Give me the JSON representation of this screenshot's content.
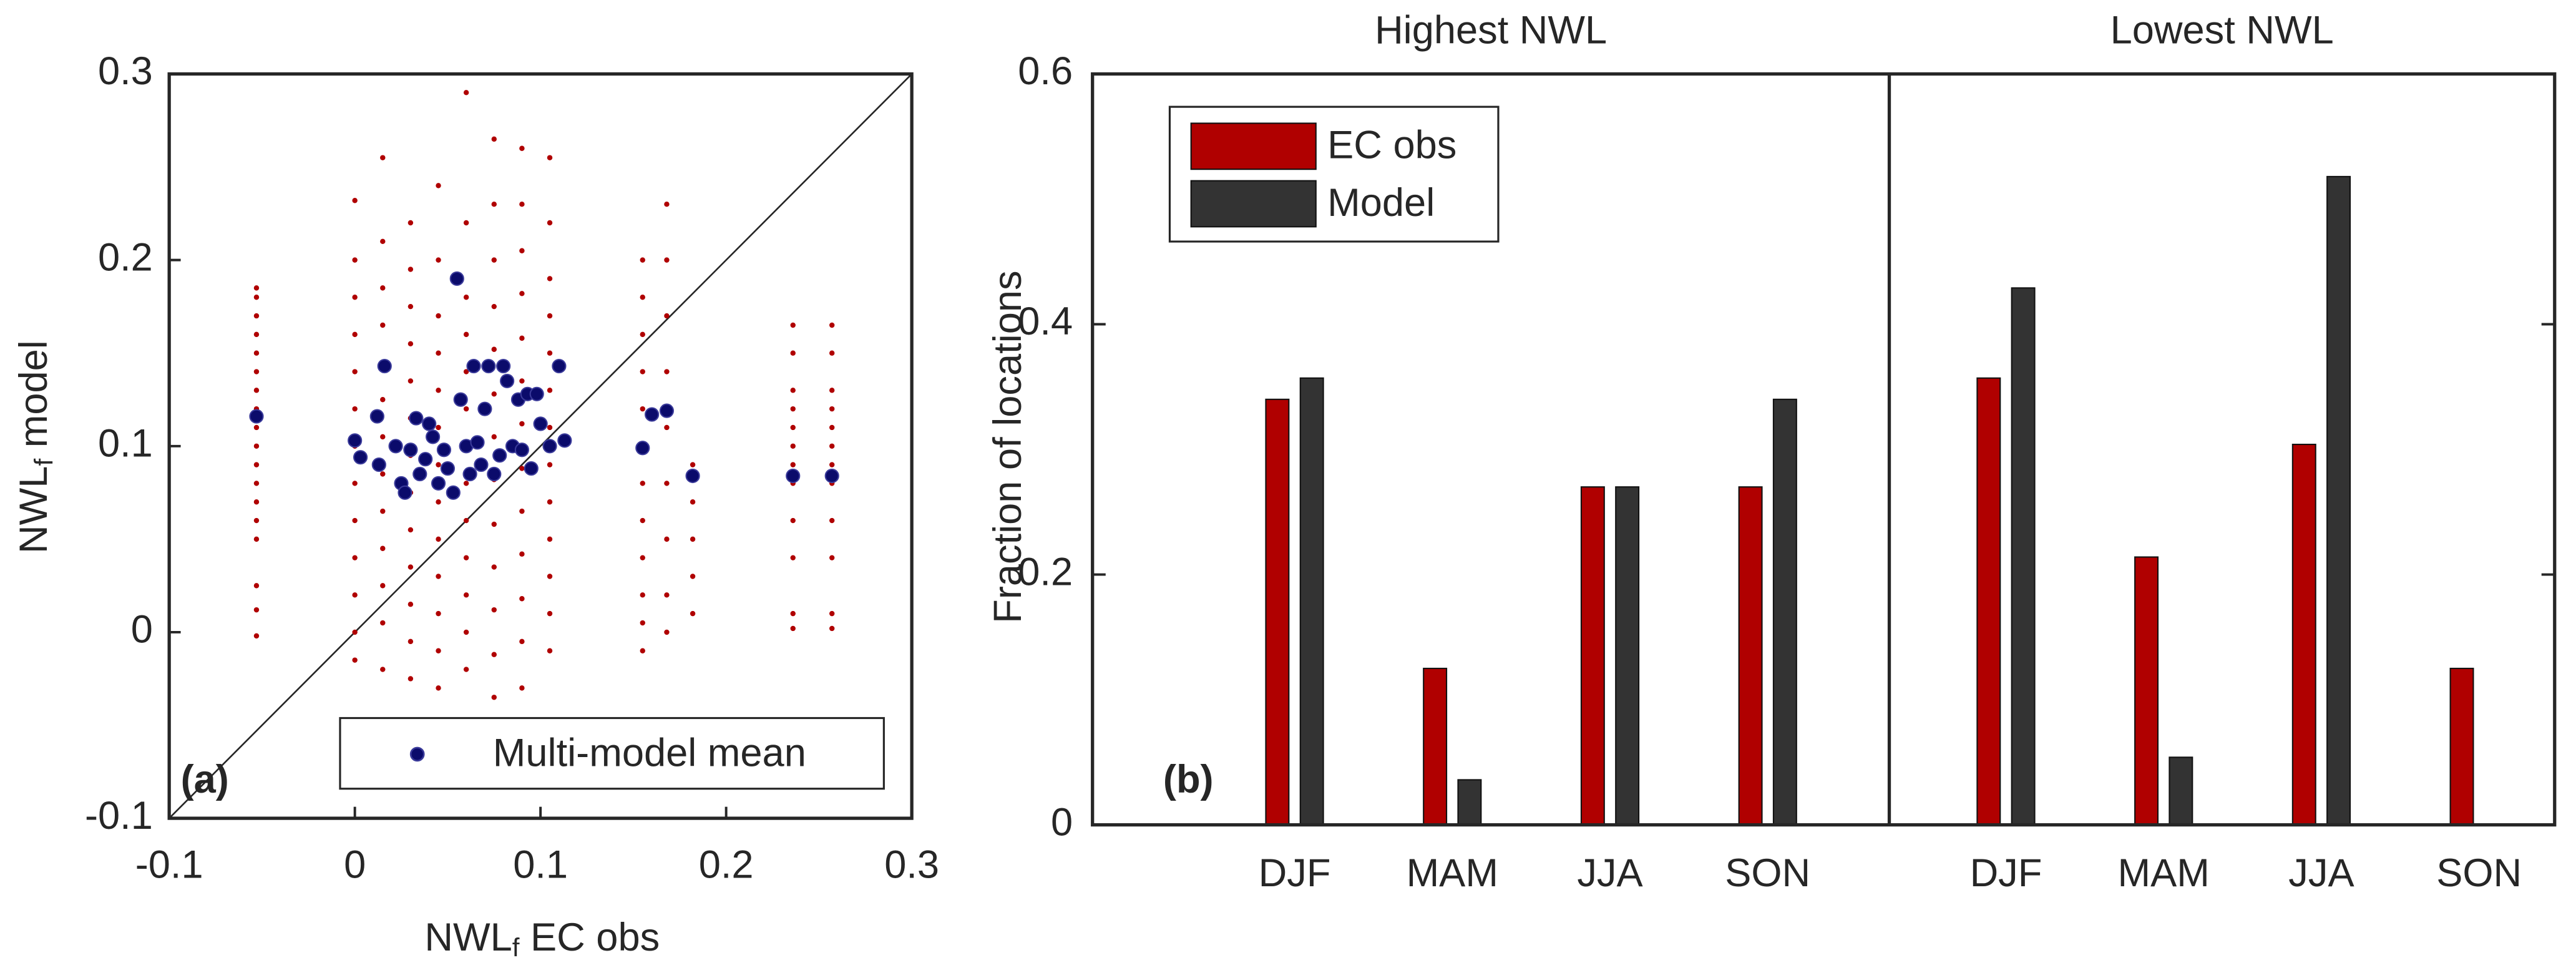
{
  "chart_data": [
    {
      "type": "scatter",
      "panel_label": "(a)",
      "xlabel": [
        "NWL",
        "f",
        " EC obs"
      ],
      "ylabel": [
        "NWL",
        "f",
        " model"
      ],
      "xlim": [
        -0.1,
        0.3
      ],
      "ylim": [
        -0.1,
        0.3
      ],
      "xticks": [
        -0.1,
        0,
        0.1,
        0.2,
        0.3
      ],
      "yticks": [
        -0.1,
        0,
        0.1,
        0.2,
        0.3
      ],
      "legend": "lower right",
      "series": [
        {
          "color": "#b00000",
          "x": [
            -0.053,
            -0.053,
            -0.053,
            -0.053,
            -0.053,
            -0.053,
            -0.053,
            -0.053,
            -0.053,
            -0.053,
            -0.053,
            -0.053,
            -0.053,
            -0.053,
            -0.053,
            -0.053,
            -0.053,
            -0.053,
            0,
            0,
            0,
            0,
            0,
            0,
            0,
            0,
            0,
            0,
            0,
            0,
            0,
            0.015,
            0.015,
            0.015,
            0.015,
            0.015,
            0.015,
            0.015,
            0.015,
            0.015,
            0.015,
            0.015,
            0.015,
            0.015,
            0.03,
            0.03,
            0.03,
            0.03,
            0.03,
            0.03,
            0.03,
            0.03,
            0.03,
            0.03,
            0.03,
            0.03,
            0.03,
            0.045,
            0.045,
            0.045,
            0.045,
            0.045,
            0.045,
            0.045,
            0.045,
            0.045,
            0.045,
            0.045,
            0.045,
            0.045,
            0.06,
            0.06,
            0.06,
            0.06,
            0.06,
            0.06,
            0.06,
            0.06,
            0.06,
            0.06,
            0.06,
            0.06,
            0.06,
            0.075,
            0.075,
            0.075,
            0.075,
            0.075,
            0.075,
            0.075,
            0.075,
            0.075,
            0.075,
            0.075,
            0.075,
            0.075,
            0.09,
            0.09,
            0.09,
            0.09,
            0.09,
            0.09,
            0.09,
            0.09,
            0.09,
            0.09,
            0.09,
            0.09,
            0.09,
            0.105,
            0.105,
            0.105,
            0.105,
            0.105,
            0.105,
            0.105,
            0.105,
            0.105,
            0.105,
            0.105,
            0.105,
            0.105,
            0.155,
            0.155,
            0.155,
            0.155,
            0.155,
            0.155,
            0.155,
            0.155,
            0.155,
            0.155,
            0.155,
            0.155,
            0.168,
            0.168,
            0.168,
            0.168,
            0.168,
            0.168,
            0.168,
            0.168,
            0.168,
            0.182,
            0.182,
            0.182,
            0.182,
            0.182,
            0.236,
            0.236,
            0.236,
            0.236,
            0.236,
            0.236,
            0.236,
            0.236,
            0.236,
            0.236,
            0.236,
            0.236,
            0.257,
            0.257,
            0.257,
            0.257,
            0.257,
            0.257,
            0.257,
            0.257,
            0.257,
            0.257,
            0.257,
            0.257
          ],
          "values": [
            0.185,
            0.18,
            0.17,
            0.16,
            0.15,
            0.14,
            0.13,
            0.12,
            0.11,
            0.1,
            0.09,
            0.08,
            0.07,
            0.06,
            0.05,
            0.025,
            0.012,
            -0.002,
            -0.015,
            0.0,
            0.02,
            0.04,
            0.06,
            0.08,
            0.1,
            0.12,
            0.14,
            0.16,
            0.18,
            0.2,
            0.232,
            -0.02,
            0.005,
            0.025,
            0.045,
            0.065,
            0.085,
            0.105,
            0.125,
            0.145,
            0.165,
            0.185,
            0.21,
            0.255,
            -0.025,
            -0.005,
            0.015,
            0.035,
            0.055,
            0.075,
            0.095,
            0.115,
            0.135,
            0.155,
            0.175,
            0.195,
            0.22,
            -0.03,
            -0.01,
            0.01,
            0.03,
            0.05,
            0.07,
            0.09,
            0.11,
            0.13,
            0.15,
            0.17,
            0.2,
            0.24,
            -0.02,
            0.0,
            0.02,
            0.04,
            0.06,
            0.08,
            0.1,
            0.12,
            0.14,
            0.16,
            0.18,
            0.22,
            0.29,
            -0.035,
            -0.012,
            0.012,
            0.035,
            0.058,
            0.082,
            0.105,
            0.128,
            0.152,
            0.175,
            0.2,
            0.23,
            0.265,
            -0.03,
            -0.005,
            0.018,
            0.042,
            0.065,
            0.088,
            0.112,
            0.135,
            0.158,
            0.182,
            0.205,
            0.23,
            0.26,
            -0.01,
            0.01,
            0.03,
            0.05,
            0.07,
            0.09,
            0.11,
            0.13,
            0.15,
            0.17,
            0.19,
            0.22,
            0.255,
            0.2,
            0.18,
            0.16,
            0.14,
            0.12,
            0.1,
            0.08,
            0.06,
            0.04,
            0.02,
            0.005,
            -0.01,
            0.23,
            0.2,
            0.17,
            0.14,
            0.11,
            0.08,
            0.05,
            0.02,
            0.0,
            0.09,
            0.07,
            0.05,
            0.03,
            0.01,
            0.165,
            0.15,
            0.13,
            0.12,
            0.11,
            0.1,
            0.09,
            0.08,
            0.06,
            0.04,
            0.01,
            0.002,
            0.165,
            0.15,
            0.13,
            0.12,
            0.11,
            0.1,
            0.09,
            0.08,
            0.06,
            0.04,
            0.01,
            0.002
          ]
        },
        {
          "name": "Multi-model mean",
          "color": "#0b0b6b",
          "x": [
            -0.053,
            0,
            0.003,
            0.012,
            0.013,
            0.016,
            0.022,
            0.025,
            0.027,
            0.03,
            0.033,
            0.035,
            0.038,
            0.04,
            0.042,
            0.045,
            0.048,
            0.05,
            0.053,
            0.055,
            0.057,
            0.06,
            0.062,
            0.064,
            0.066,
            0.068,
            0.07,
            0.072,
            0.075,
            0.078,
            0.08,
            0.082,
            0.085,
            0.088,
            0.09,
            0.093,
            0.095,
            0.098,
            0.1,
            0.105,
            0.11,
            0.113,
            0.155,
            0.16,
            0.168,
            0.182,
            0.236,
            0.257
          ],
          "values": [
            0.116,
            0.103,
            0.094,
            0.116,
            0.09,
            0.143,
            0.1,
            0.08,
            0.075,
            0.098,
            0.115,
            0.085,
            0.093,
            0.112,
            0.105,
            0.08,
            0.098,
            0.088,
            0.075,
            0.19,
            0.125,
            0.1,
            0.085,
            0.143,
            0.102,
            0.09,
            0.12,
            0.143,
            0.085,
            0.095,
            0.143,
            0.135,
            0.1,
            0.125,
            0.098,
            0.128,
            0.088,
            0.128,
            0.112,
            0.1,
            0.143,
            0.103,
            0.099,
            0.117,
            0.119,
            0.084,
            0.084,
            0.084
          ]
        }
      ]
    },
    {
      "type": "bar",
      "panel_label": "(b)",
      "ylabel": "Fraction of locations",
      "categories": [
        "DJF",
        "MAM",
        "JJA",
        "SON"
      ],
      "ylim": [
        0,
        0.6
      ],
      "yticks": [
        0,
        0.2,
        0.4,
        0.6
      ],
      "legend": "upper left",
      "panels": [
        {
          "title": "Highest NWL",
          "series": [
            {
              "name": "EC obs",
              "color": "#b00000",
              "values": [
                0.34,
                0.125,
                0.27,
                0.27
              ]
            },
            {
              "name": "Model",
              "color": "#333333",
              "values": [
                0.357,
                0.036,
                0.27,
                0.34
              ]
            }
          ]
        },
        {
          "title": "Lowest NWL",
          "series": [
            {
              "color": "#b00000",
              "values": [
                0.357,
                0.214,
                0.304,
                0.125
              ]
            },
            {
              "color": "#333333",
              "values": [
                0.429,
                0.054,
                0.518,
                0
              ]
            }
          ]
        }
      ]
    }
  ]
}
